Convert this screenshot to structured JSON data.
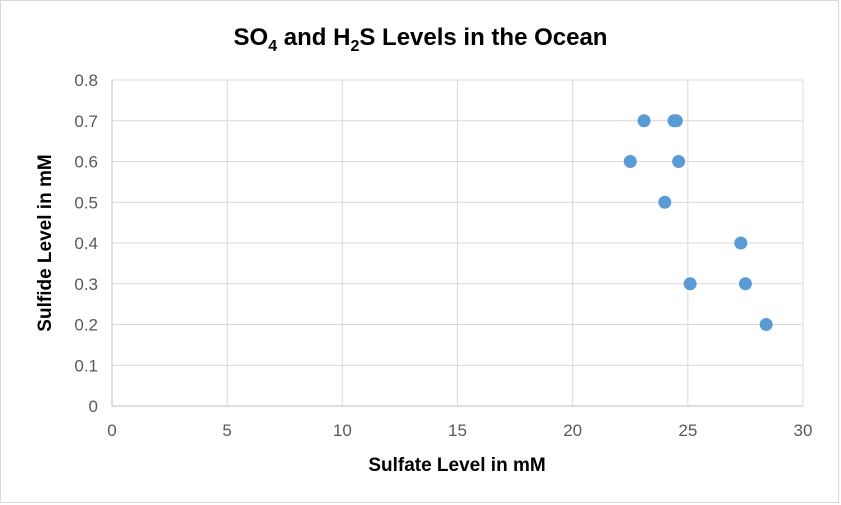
{
  "chart_data": {
    "type": "scatter",
    "title": "SO4 and H2S Levels in the Ocean",
    "title_parts": {
      "so": "SO",
      "so_sub": "4",
      "and_h": " and H",
      "h_sub": "2",
      "rest": "S Levels in the Ocean"
    },
    "xlabel": "Sulfate Level in mM",
    "ylabel": "Sulfide Level in mM",
    "xlim": [
      0,
      30
    ],
    "ylim": [
      0,
      0.8
    ],
    "x_ticks": [
      0,
      5,
      10,
      15,
      20,
      25,
      30
    ],
    "y_ticks": [
      0,
      0.1,
      0.2,
      0.3,
      0.4,
      0.5,
      0.6,
      0.7,
      0.8
    ],
    "x_tick_labels": [
      "0",
      "5",
      "10",
      "15",
      "20",
      "25",
      "30"
    ],
    "y_tick_labels": [
      "0",
      "0.1",
      "0.2",
      "0.3",
      "0.4",
      "0.5",
      "0.6",
      "0.7",
      "0.8"
    ],
    "grid": true,
    "legend": "none",
    "marker_color": "#5b9bd5",
    "points": [
      {
        "x": 23.1,
        "y": 0.7
      },
      {
        "x": 24.4,
        "y": 0.7
      },
      {
        "x": 24.5,
        "y": 0.7
      },
      {
        "x": 22.5,
        "y": 0.6
      },
      {
        "x": 24.6,
        "y": 0.6
      },
      {
        "x": 24.0,
        "y": 0.5
      },
      {
        "x": 27.3,
        "y": 0.4
      },
      {
        "x": 25.1,
        "y": 0.3
      },
      {
        "x": 27.5,
        "y": 0.3
      },
      {
        "x": 28.4,
        "y": 0.2
      }
    ]
  }
}
